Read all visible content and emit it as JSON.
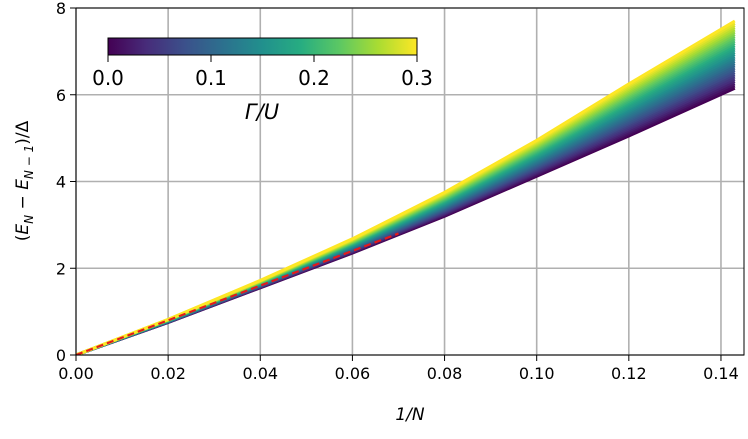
{
  "chart_data": {
    "type": "line",
    "xlabel": "1/N",
    "ylabel": "(E_N − E_{N−1})/Δ",
    "xlim": [
      0.0,
      0.145
    ],
    "ylim": [
      0,
      8
    ],
    "x_ticks": [
      "0.00",
      "0.02",
      "0.04",
      "0.06",
      "0.08",
      "0.10",
      "0.12",
      "0.14"
    ],
    "y_ticks": [
      "0",
      "2",
      "4",
      "6",
      "8"
    ],
    "grid": true,
    "colormap": "viridis",
    "colorbar": {
      "label": "Γ/U",
      "range": [
        0.0,
        0.3
      ],
      "ticks": [
        "0.0",
        "0.1",
        "0.2",
        "0.3"
      ],
      "placement": "top-left"
    },
    "series_family": {
      "parameter_range": [
        0.0,
        0.3
      ],
      "count": 31,
      "x": [
        0.0,
        0.02,
        0.04,
        0.06,
        0.08,
        0.1,
        0.12,
        0.143
      ],
      "y_at_min_param": [
        0.0,
        0.75,
        1.55,
        2.35,
        3.2,
        4.12,
        5.05,
        6.15
      ],
      "y_at_max_param": [
        0.0,
        0.82,
        1.72,
        2.68,
        3.75,
        4.95,
        6.25,
        7.7
      ]
    },
    "reference_line": {
      "style": "dashed",
      "color": "#e31a1c",
      "x": [
        0.0,
        0.07
      ],
      "y": [
        0.0,
        2.8
      ]
    }
  }
}
